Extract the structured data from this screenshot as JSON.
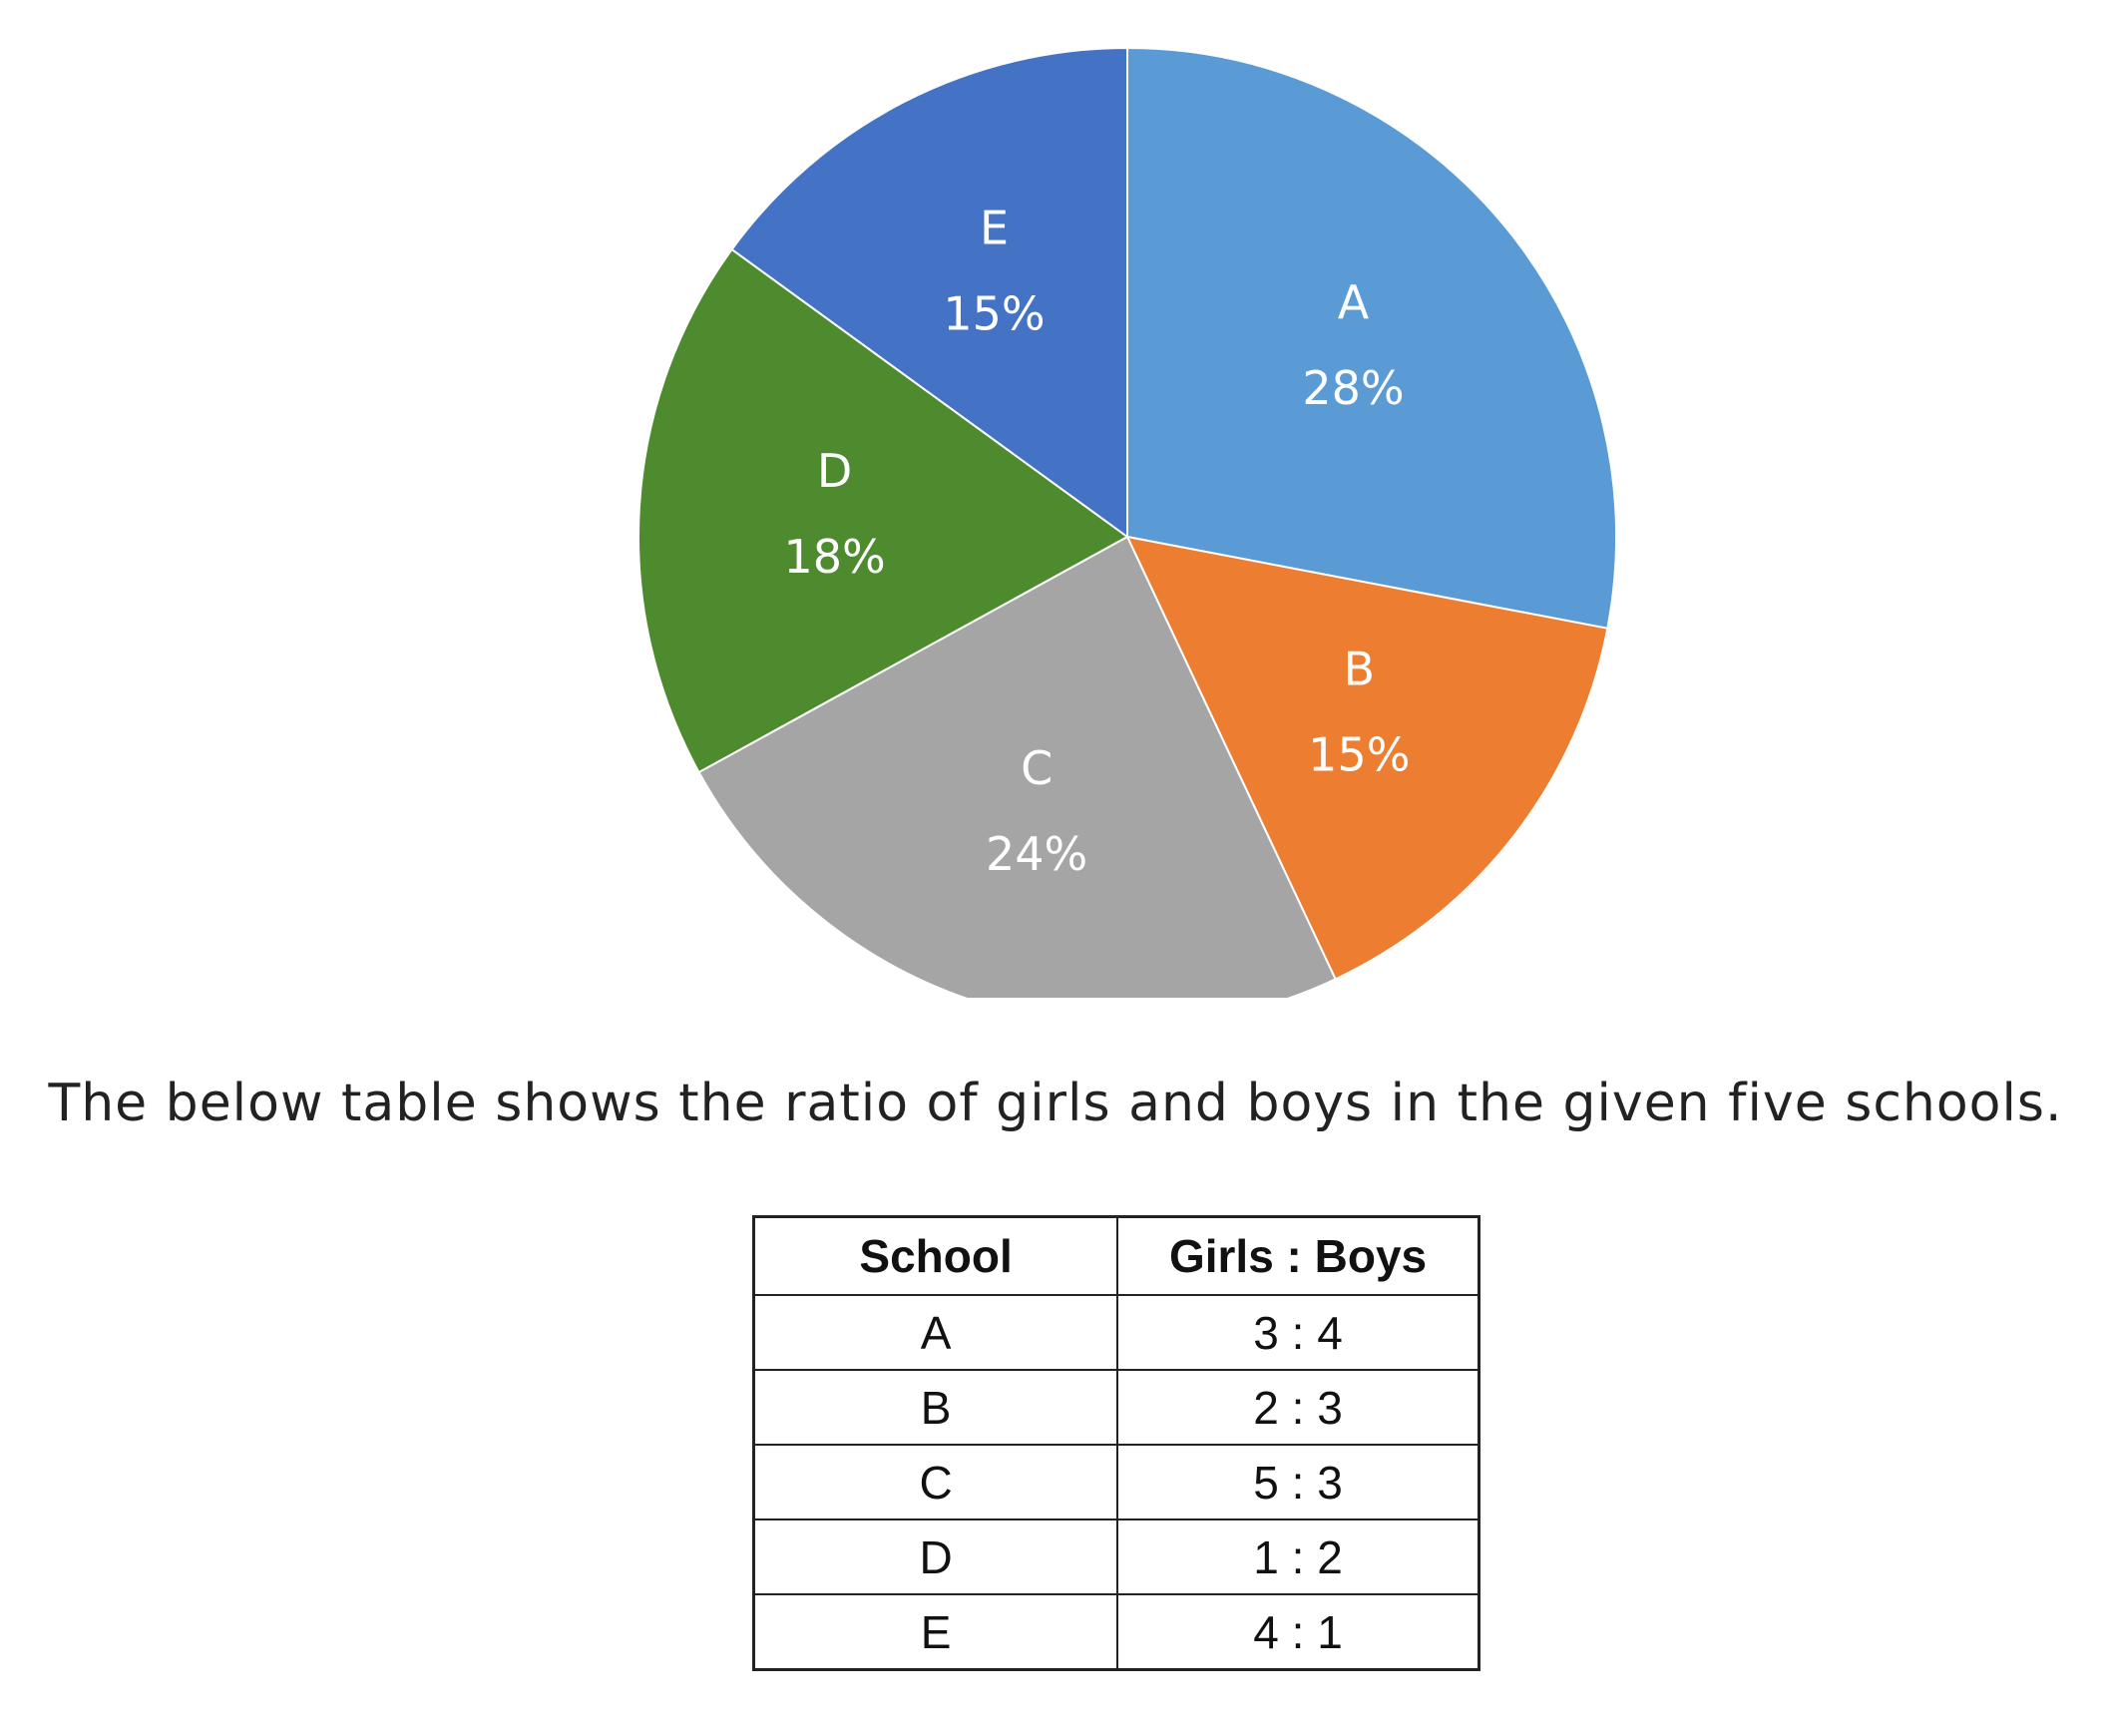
{
  "chart_data": {
    "type": "pie",
    "slices": [
      {
        "label": "A",
        "value": 28,
        "value_label": "28%",
        "color": "#5b9bd5"
      },
      {
        "label": "B",
        "value": 15,
        "value_label": "15%",
        "color": "#ed7d31"
      },
      {
        "label": "C",
        "value": 24,
        "value_label": "24%",
        "color": "#a5a5a5"
      },
      {
        "label": "D",
        "value": 18,
        "value_label": "18%",
        "color": "#4e8a2e"
      },
      {
        "label": "E",
        "value": 15,
        "value_label": "15%",
        "color": "#4472c4"
      }
    ],
    "start_angle_deg": 0,
    "direction": "clockwise"
  },
  "caption": "The below table shows the ratio of girls and boys in the given five schools.",
  "table": {
    "headers": [
      "School",
      "Girls : Boys"
    ],
    "rows": [
      [
        "A",
        "3 : 4"
      ],
      [
        "B",
        "2 : 3"
      ],
      [
        "C",
        "5 : 3"
      ],
      [
        "D",
        "1 : 2"
      ],
      [
        "E",
        "4 : 1"
      ]
    ]
  }
}
